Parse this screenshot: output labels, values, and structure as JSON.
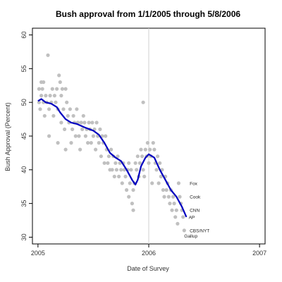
{
  "chart_data": {
    "type": "scatter",
    "title": "Bush approval from 1/1/2005 through 5/8/2006",
    "xlabel": "Date of Survey",
    "ylabel": "Bush Approval (Percent)",
    "xlim": [
      2004.95,
      2007.05
    ],
    "ylim": [
      29,
      61
    ],
    "x_ticks": [
      2005,
      2006,
      2007
    ],
    "x_tick_labels": [
      "2005",
      "2006",
      "2007"
    ],
    "y_ticks": [
      30,
      35,
      40,
      45,
      50,
      55,
      60
    ],
    "y_tick_labels": [
      "30",
      "35",
      "40",
      "45",
      "50",
      "55",
      "60"
    ],
    "vertical_reference_line": 2006,
    "grid": false,
    "colors": {
      "points": "#c0c0c0",
      "trend": "#0000c0",
      "refline": "#d0d0d0",
      "axis": "#000000"
    },
    "points": [
      [
        2005.01,
        52
      ],
      [
        2005.01,
        50
      ],
      [
        2005.02,
        49
      ],
      [
        2005.03,
        53
      ],
      [
        2005.03,
        51
      ],
      [
        2005.04,
        52
      ],
      [
        2005.05,
        50
      ],
      [
        2005.05,
        53
      ],
      [
        2005.06,
        48
      ],
      [
        2005.07,
        51
      ],
      [
        2005.08,
        50
      ],
      [
        2005.09,
        57
      ],
      [
        2005.1,
        45
      ],
      [
        2005.1,
        49
      ],
      [
        2005.11,
        51
      ],
      [
        2005.12,
        50
      ],
      [
        2005.13,
        52
      ],
      [
        2005.14,
        48
      ],
      [
        2005.15,
        51
      ],
      [
        2005.16,
        50
      ],
      [
        2005.17,
        52
      ],
      [
        2005.18,
        49
      ],
      [
        2005.18,
        44
      ],
      [
        2005.19,
        54
      ],
      [
        2005.2,
        53
      ],
      [
        2005.21,
        51
      ],
      [
        2005.21,
        47
      ],
      [
        2005.22,
        52
      ],
      [
        2005.23,
        49
      ],
      [
        2005.24,
        46
      ],
      [
        2005.25,
        52
      ],
      [
        2005.25,
        43
      ],
      [
        2005.26,
        50
      ],
      [
        2005.27,
        48
      ],
      [
        2005.28,
        47
      ],
      [
        2005.29,
        49
      ],
      [
        2005.3,
        44
      ],
      [
        2005.31,
        46
      ],
      [
        2005.32,
        48
      ],
      [
        2005.33,
        47
      ],
      [
        2005.34,
        45
      ],
      [
        2005.35,
        49
      ],
      [
        2005.36,
        47
      ],
      [
        2005.37,
        45
      ],
      [
        2005.38,
        43
      ],
      [
        2005.39,
        47
      ],
      [
        2005.4,
        46
      ],
      [
        2005.41,
        48
      ],
      [
        2005.42,
        47
      ],
      [
        2005.43,
        45
      ],
      [
        2005.44,
        46
      ],
      [
        2005.45,
        44
      ],
      [
        2005.46,
        47
      ],
      [
        2005.47,
        46
      ],
      [
        2005.48,
        44
      ],
      [
        2005.49,
        47
      ],
      [
        2005.5,
        45
      ],
      [
        2005.51,
        46
      ],
      [
        2005.52,
        43
      ],
      [
        2005.53,
        47
      ],
      [
        2005.54,
        45
      ],
      [
        2005.55,
        44
      ],
      [
        2005.56,
        46
      ],
      [
        2005.57,
        42
      ],
      [
        2005.58,
        45
      ],
      [
        2005.59,
        44
      ],
      [
        2005.6,
        41
      ],
      [
        2005.61,
        45
      ],
      [
        2005.62,
        43
      ],
      [
        2005.63,
        41
      ],
      [
        2005.64,
        42
      ],
      [
        2005.65,
        40
      ],
      [
        2005.66,
        43
      ],
      [
        2005.67,
        40
      ],
      [
        2005.68,
        42
      ],
      [
        2005.69,
        39
      ],
      [
        2005.7,
        41
      ],
      [
        2005.71,
        40
      ],
      [
        2005.72,
        42
      ],
      [
        2005.73,
        39
      ],
      [
        2005.74,
        41
      ],
      [
        2005.75,
        40
      ],
      [
        2005.76,
        38
      ],
      [
        2005.77,
        41
      ],
      [
        2005.78,
        40
      ],
      [
        2005.79,
        39
      ],
      [
        2005.8,
        37
      ],
      [
        2005.81,
        40
      ],
      [
        2005.82,
        36
      ],
      [
        2005.82,
        41
      ],
      [
        2005.83,
        38
      ],
      [
        2005.84,
        40
      ],
      [
        2005.85,
        35
      ],
      [
        2005.86,
        37
      ],
      [
        2005.86,
        34
      ],
      [
        2005.87,
        38
      ],
      [
        2005.88,
        41
      ],
      [
        2005.89,
        40
      ],
      [
        2005.9,
        42
      ],
      [
        2005.91,
        39
      ],
      [
        2005.92,
        41
      ],
      [
        2005.93,
        43
      ],
      [
        2005.94,
        42
      ],
      [
        2005.95,
        40
      ],
      [
        2005.95,
        50
      ],
      [
        2005.96,
        39
      ],
      [
        2005.97,
        43
      ],
      [
        2005.98,
        42
      ],
      [
        2005.99,
        44
      ],
      [
        2006.0,
        41
      ],
      [
        2006.01,
        43
      ],
      [
        2006.02,
        42
      ],
      [
        2006.03,
        38
      ],
      [
        2006.04,
        44
      ],
      [
        2006.05,
        43
      ],
      [
        2006.06,
        41
      ],
      [
        2006.07,
        40
      ],
      [
        2006.08,
        42
      ],
      [
        2006.09,
        38
      ],
      [
        2006.1,
        41
      ],
      [
        2006.11,
        39
      ],
      [
        2006.12,
        40
      ],
      [
        2006.13,
        37
      ],
      [
        2006.14,
        36
      ],
      [
        2006.15,
        39
      ],
      [
        2006.16,
        37
      ],
      [
        2006.17,
        38
      ],
      [
        2006.18,
        36
      ],
      [
        2006.19,
        35
      ],
      [
        2006.2,
        37
      ],
      [
        2006.21,
        34
      ],
      [
        2006.22,
        36
      ],
      [
        2006.23,
        35
      ],
      [
        2006.24,
        33
      ],
      [
        2006.25,
        34
      ],
      [
        2006.26,
        32
      ],
      [
        2006.27,
        38
      ],
      [
        2006.28,
        36
      ],
      [
        2006.29,
        35
      ],
      [
        2006.3,
        34
      ],
      [
        2006.31,
        33
      ],
      [
        2006.32,
        31
      ]
    ],
    "trend_line": [
      [
        2005.0,
        50.2
      ],
      [
        2005.03,
        50.5
      ],
      [
        2005.07,
        50.0
      ],
      [
        2005.12,
        49.8
      ],
      [
        2005.17,
        49.3
      ],
      [
        2005.2,
        48.5
      ],
      [
        2005.25,
        47.5
      ],
      [
        2005.3,
        47.0
      ],
      [
        2005.35,
        46.8
      ],
      [
        2005.42,
        46.3
      ],
      [
        2005.5,
        45.8
      ],
      [
        2005.55,
        45.2
      ],
      [
        2005.6,
        44.0
      ],
      [
        2005.65,
        42.5
      ],
      [
        2005.7,
        41.8
      ],
      [
        2005.75,
        41.3
      ],
      [
        2005.8,
        40.0
      ],
      [
        2005.85,
        38.5
      ],
      [
        2005.88,
        37.8
      ],
      [
        2005.9,
        38.5
      ],
      [
        2005.93,
        40.5
      ],
      [
        2005.97,
        41.8
      ],
      [
        2006.0,
        42.3
      ],
      [
        2006.05,
        41.8
      ],
      [
        2006.1,
        40.0
      ],
      [
        2006.15,
        38.5
      ],
      [
        2006.2,
        37.0
      ],
      [
        2006.25,
        36.0
      ],
      [
        2006.3,
        34.5
      ],
      [
        2006.34,
        33.0
      ]
    ],
    "annotations": [
      {
        "label": "Fox",
        "x": 2006.37,
        "y": 38
      },
      {
        "label": "Cook",
        "x": 2006.37,
        "y": 36
      },
      {
        "label": "CNN",
        "x": 2006.37,
        "y": 34
      },
      {
        "label": "AP",
        "x": 2006.36,
        "y": 33
      },
      {
        "label": "CBS/NYT",
        "x": 2006.37,
        "y": 31
      },
      {
        "label": "Gallup",
        "x": 2006.32,
        "y": 30.2
      }
    ]
  }
}
